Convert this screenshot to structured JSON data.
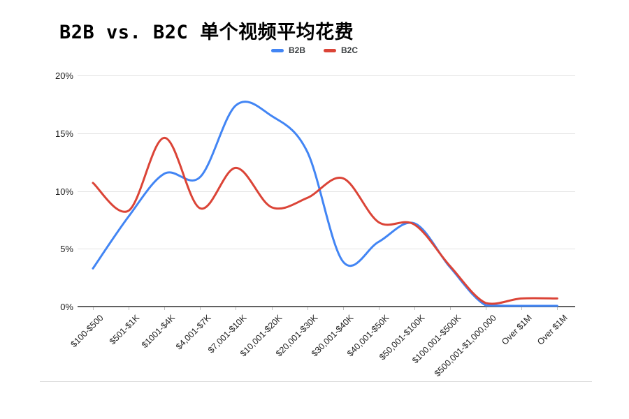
{
  "chart_data": {
    "type": "line",
    "title": "B2B vs. B2C 单个视频平均花费",
    "smooth": true,
    "grid": true,
    "legend_position": "top-center",
    "categories": [
      "$100-$500",
      "$501-$1K",
      "$1001-$4K",
      "$4,001-$7K",
      "$7,001-$10K",
      "$10,001-$20K",
      "$20,001-$30K",
      "$30,001-$40K",
      "$40,001-$50K",
      "$50,001-$100K",
      "$100,001-$500K",
      "$500,001-$1,000,000",
      "Over $1M",
      "Over $1M"
    ],
    "series": [
      {
        "name": "B2B",
        "color": "#4285F4",
        "values": [
          3.3,
          7.8,
          11.5,
          11.2,
          17.4,
          16.5,
          13.4,
          3.9,
          5.6,
          7.2,
          3.4,
          0.1,
          0,
          0
        ]
      },
      {
        "name": "B2C",
        "color": "#DB4437",
        "values": [
          10.7,
          8.3,
          14.6,
          8.5,
          12.0,
          8.6,
          9.4,
          11.1,
          7.3,
          7.1,
          3.5,
          0.3,
          0.7,
          0.7
        ]
      }
    ],
    "y_axis": {
      "range": [
        0,
        20
      ],
      "ticks": [
        {
          "value": 0,
          "label": "0%"
        },
        {
          "value": 5,
          "label": "5%"
        },
        {
          "value": 10,
          "label": "10%"
        },
        {
          "value": 15,
          "label": "15%"
        },
        {
          "value": 20,
          "label": "20%"
        }
      ]
    },
    "colors": {
      "gridline": "#e3e3e3",
      "axis": "#616161",
      "tick": "#bdbdbd",
      "label": "#1f1f1f"
    }
  }
}
